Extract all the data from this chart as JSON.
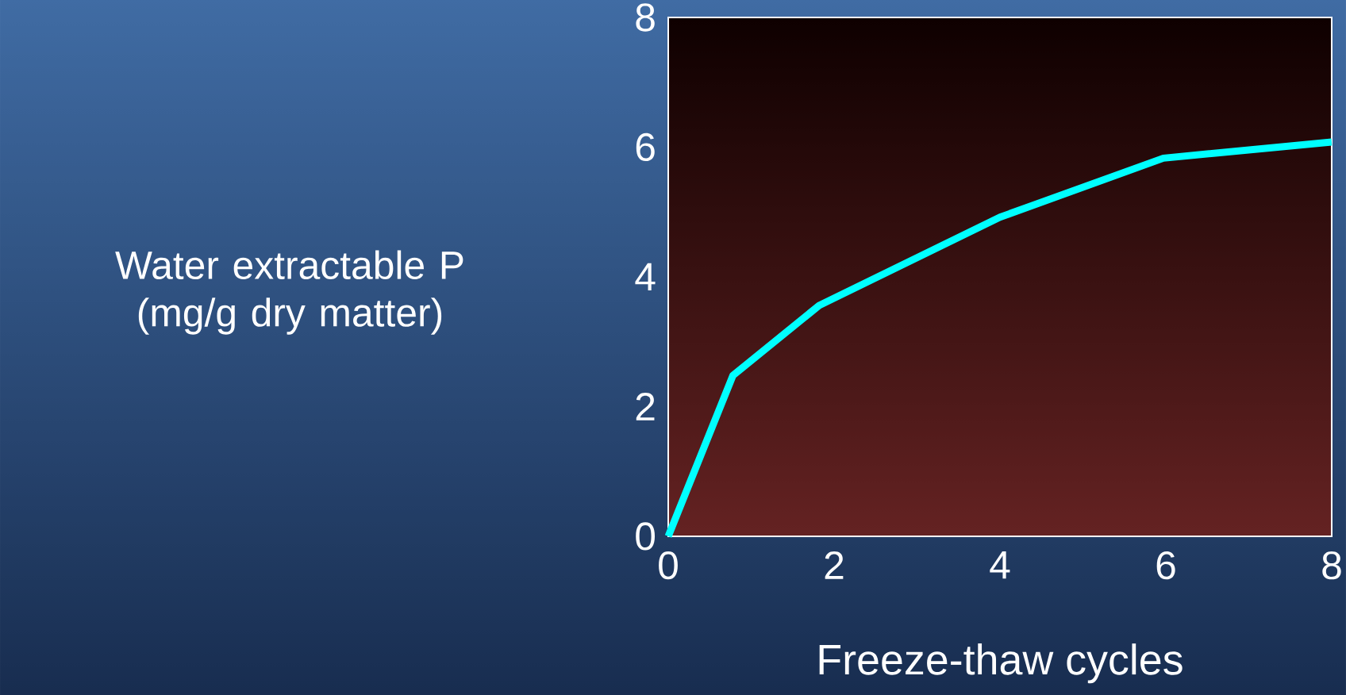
{
  "chart_data": {
    "type": "line",
    "xlabel": "Freeze-thaw cycles",
    "ylabel": "Water extractable P (mg/g dry matter)",
    "x": [
      0,
      0.78,
      1.82,
      4.0,
      5.97,
      8.0
    ],
    "series": [
      {
        "color": "#00ffff",
        "values": [
          0,
          2.48,
          3.56,
          4.92,
          5.83,
          6.08
        ]
      }
    ],
    "xlim": [
      0,
      8
    ],
    "ylim": [
      0,
      8
    ],
    "xticks": [
      0,
      2,
      4,
      6,
      8
    ],
    "yticks": [
      0,
      2,
      4,
      6,
      8
    ],
    "grid": false
  }
}
